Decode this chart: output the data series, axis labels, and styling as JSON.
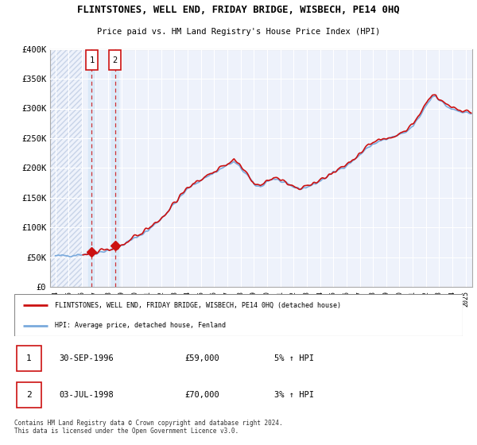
{
  "title": "FLINTSTONES, WELL END, FRIDAY BRIDGE, WISBECH, PE14 0HQ",
  "subtitle": "Price paid vs. HM Land Registry's House Price Index (HPI)",
  "hpi_label": "HPI: Average price, detached house, Fenland",
  "price_label": "FLINTSTONES, WELL END, FRIDAY BRIDGE, WISBECH, PE14 0HQ (detached house)",
  "footer": "Contains HM Land Registry data © Crown copyright and database right 2024.\nThis data is licensed under the Open Government Licence v3.0.",
  "sale1_label": "1",
  "sale1_date": "30-SEP-1996",
  "sale1_price": "£59,000",
  "sale1_hpi": "5% ↑ HPI",
  "sale2_label": "2",
  "sale2_date": "03-JUL-1998",
  "sale2_price": "£70,000",
  "sale2_hpi": "3% ↑ HPI",
  "sale1_year": 1996.75,
  "sale1_value": 59000,
  "sale2_year": 1998.5,
  "sale2_value": 70000,
  "ylim": [
    0,
    400000
  ],
  "xlim_start": 1993.6,
  "xlim_end": 2025.5,
  "hpi_color": "#7aaadd",
  "price_color": "#cc1111",
  "bg_plot": "#eef2fb",
  "hatch_color": "#c8d4e8",
  "grid_color": "#ffffff",
  "sale_band_color": "#d8e8f8",
  "xtick_years": [
    1994,
    1995,
    1996,
    1997,
    1998,
    1999,
    2000,
    2001,
    2002,
    2003,
    2004,
    2005,
    2006,
    2007,
    2008,
    2009,
    2010,
    2011,
    2012,
    2013,
    2014,
    2015,
    2016,
    2017,
    2018,
    2019,
    2020,
    2021,
    2022,
    2023,
    2024,
    2025
  ]
}
